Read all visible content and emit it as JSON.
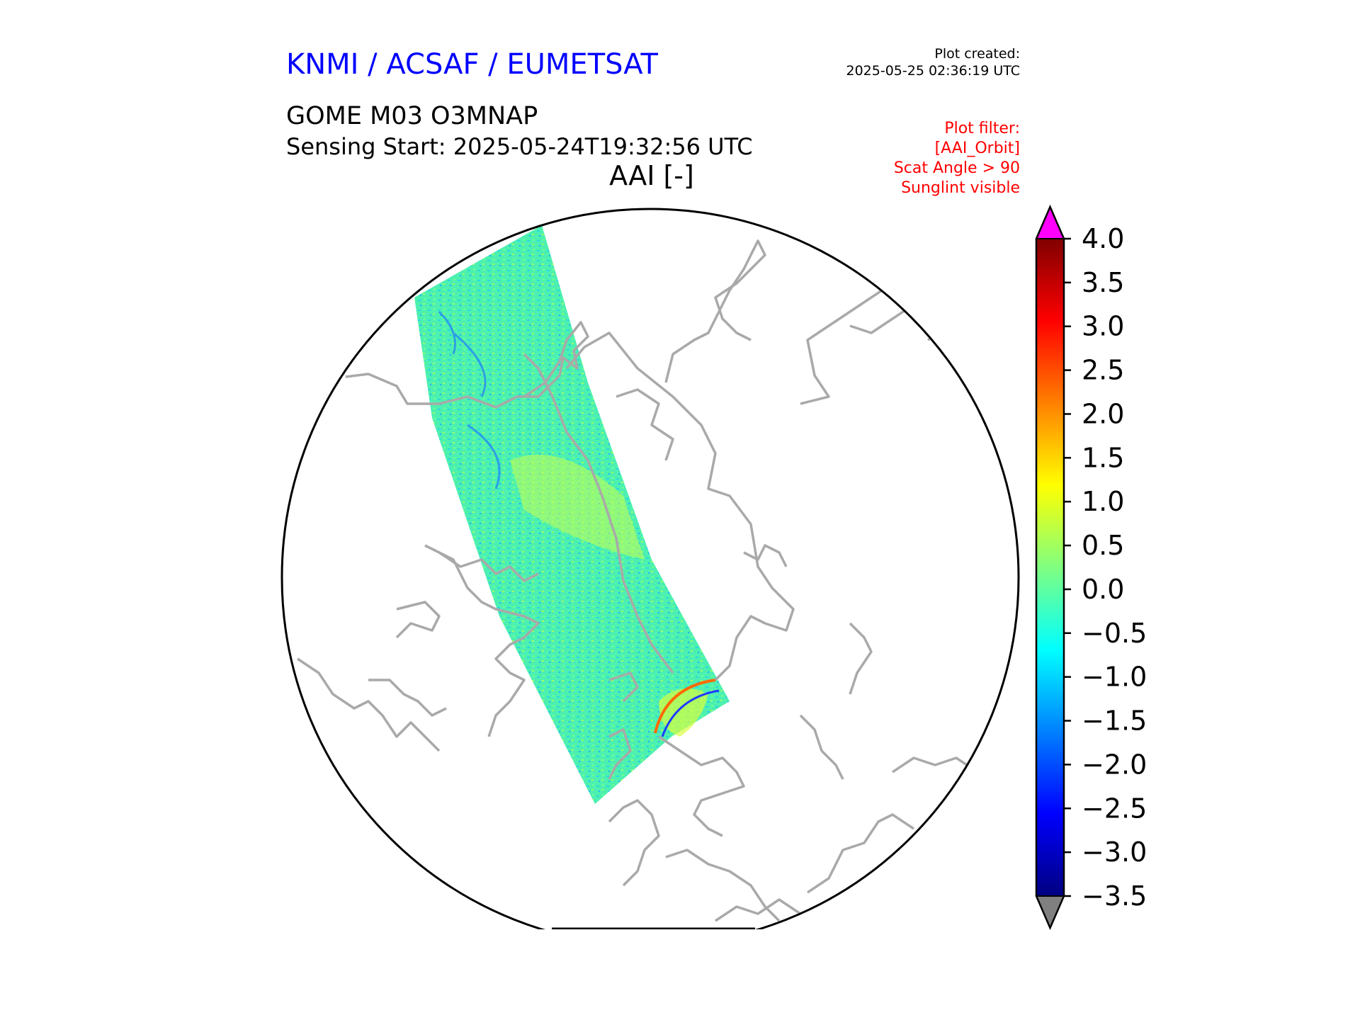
{
  "header": {
    "organisation": "KNMI / ACSAF / EUMETSAT",
    "plot_created_label": "Plot created:",
    "plot_created_time": "2025-05-25 02:36:19 UTC",
    "product": "GOME M03 O3MNAP",
    "sensing_start": "Sensing Start: 2025-05-24T19:32:56 UTC",
    "quantity": "AAI [-]"
  },
  "filters": {
    "title": "Plot filter:",
    "items": [
      "[AAI_Orbit]",
      "Scat Angle > 90",
      "Sunglint visible"
    ]
  },
  "colorbar": {
    "min": -3.5,
    "max": 4.0,
    "ticks": [
      "4.0",
      "3.5",
      "3.0",
      "2.5",
      "2.0",
      "1.5",
      "1.0",
      "0.5",
      "0.0",
      "−0.5",
      "−1.0",
      "−1.5",
      "−2.0",
      "−2.5",
      "−3.0",
      "−3.5"
    ],
    "over_color": "#ff00ff",
    "under_color": "#808080",
    "colormap": [
      "#000080",
      "#0000ff",
      "#0080ff",
      "#00ffff",
      "#80ff80",
      "#ffff00",
      "#ff8000",
      "#ff0000",
      "#800000"
    ]
  },
  "map": {
    "projection": "north polar stereographic",
    "coastline_color": "#a9a9a9",
    "swath_dominant_color": "#4cf0b0"
  }
}
